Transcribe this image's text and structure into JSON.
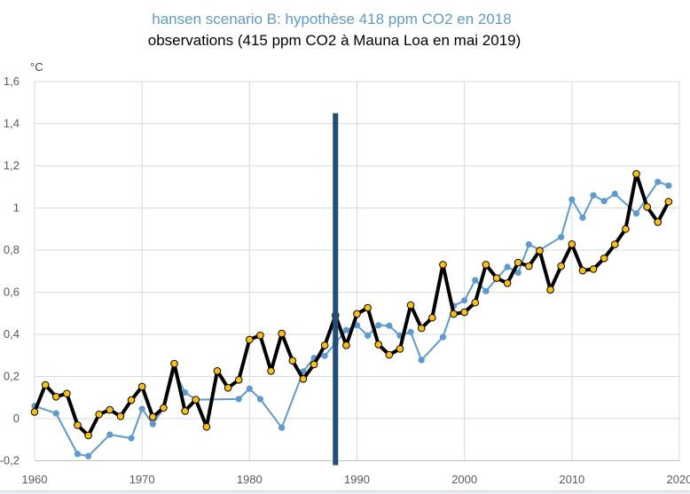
{
  "chart_data": {
    "type": "line",
    "title": "hansen scenario B: hypothèse 418 ppm CO2 en 2018",
    "subtitle": "observations (415 ppm CO2 à Mauna Loa en mai 2019)",
    "xlabel": "",
    "ylabel": "°C",
    "xlim": [
      1960,
      2020
    ],
    "ylim": [
      -0.2,
      1.6
    ],
    "grid": true,
    "legend": "title (colored text)",
    "x_ticks": [
      "1960",
      "1970",
      "1980",
      "1990",
      "2000",
      "2010",
      "2020"
    ],
    "y_ticks": [
      "-0,2",
      "0",
      "0,2",
      "0,4",
      "0,6",
      "0,8",
      "1",
      "1,2",
      "1,4",
      "1,6"
    ],
    "x_tick_values": [
      1960,
      1970,
      1980,
      1990,
      2000,
      2010,
      2020
    ],
    "y_tick_values": [
      -0.2,
      0,
      0.2,
      0.4,
      0.6,
      0.8,
      1.0,
      1.2,
      1.4,
      1.6
    ],
    "series": [
      {
        "name": "hansen scenario B",
        "color": "#5B9BD5",
        "x": [
          1960,
          1962,
          1964,
          1965,
          1967,
          1969,
          1970,
          1971,
          1972,
          1973,
          1974,
          1975,
          1979,
          1980,
          1981,
          1983,
          1985,
          1986,
          1987,
          1988,
          1989,
          1990,
          1991,
          1992,
          1993,
          1994,
          1995,
          1996,
          1998,
          1999,
          2000,
          2001,
          2002,
          2003,
          2004,
          2005,
          2006,
          2007,
          2009,
          2010,
          2011,
          2012,
          2013,
          2014,
          2016,
          2018,
          2019
        ],
        "values": [
          0.06,
          0.025,
          -0.168,
          -0.178,
          -0.076,
          -0.093,
          0.046,
          -0.026,
          0.05,
          0.23,
          0.124,
          0.09,
          0.093,
          0.142,
          0.093,
          -0.043,
          0.224,
          0.288,
          0.298,
          0.36,
          0.42,
          0.443,
          0.394,
          0.443,
          0.441,
          0.394,
          0.411,
          0.278,
          0.387,
          0.535,
          0.561,
          0.657,
          0.605,
          0.665,
          0.72,
          0.693,
          0.827,
          0.801,
          0.862,
          1.04,
          0.954,
          1.06,
          1.033,
          1.067,
          0.974,
          1.124,
          1.106
        ]
      },
      {
        "name": "observations",
        "color": "#000000",
        "marker_color": "#FFC000",
        "x": [
          1960,
          1961,
          1962,
          1963,
          1964,
          1965,
          1966,
          1967,
          1968,
          1969,
          1970,
          1971,
          1972,
          1973,
          1974,
          1975,
          1976,
          1977,
          1978,
          1979,
          1980,
          1981,
          1982,
          1983,
          1984,
          1985,
          1986,
          1987,
          1988,
          1989,
          1990,
          1991,
          1992,
          1993,
          1994,
          1995,
          1996,
          1997,
          1998,
          1999,
          2000,
          2001,
          2002,
          2003,
          2004,
          2005,
          2006,
          2007,
          2008,
          2009,
          2010,
          2011,
          2012,
          2013,
          2014,
          2015,
          2016,
          2017,
          2018,
          2019
        ],
        "values": [
          0.032,
          0.16,
          0.104,
          0.119,
          -0.031,
          -0.08,
          0.02,
          0.042,
          0.011,
          0.088,
          0.152,
          0.008,
          0.051,
          0.261,
          0.036,
          0.09,
          -0.039,
          0.226,
          0.146,
          0.184,
          0.375,
          0.395,
          0.226,
          0.404,
          0.275,
          0.188,
          0.257,
          0.348,
          0.49,
          0.348,
          0.497,
          0.526,
          0.352,
          0.303,
          0.331,
          0.539,
          0.429,
          0.479,
          0.731,
          0.497,
          0.505,
          0.551,
          0.731,
          0.667,
          0.643,
          0.741,
          0.724,
          0.797,
          0.612,
          0.724,
          0.828,
          0.703,
          0.71,
          0.761,
          0.827,
          0.9,
          1.162,
          1.005,
          0.933,
          1.03
        ]
      }
    ],
    "annotations": [
      {
        "type": "vertical-bar",
        "x": 1988,
        "y_from": -0.2,
        "y_to": 1.45,
        "color": "#1F4E79"
      }
    ]
  }
}
